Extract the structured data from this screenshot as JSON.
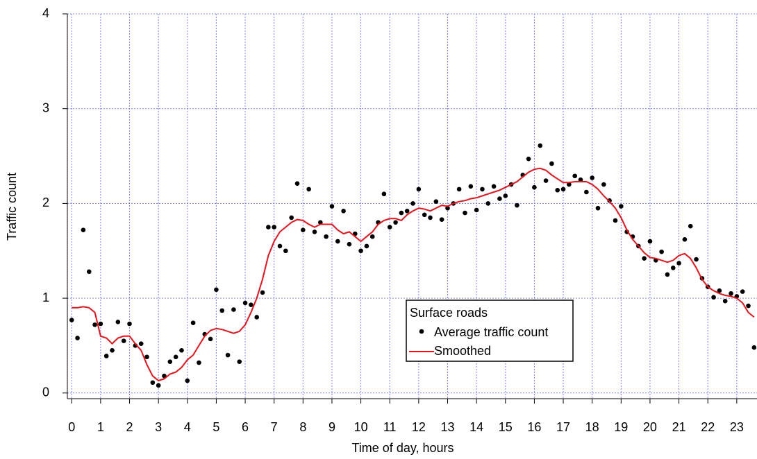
{
  "chart_data": {
    "type": "scatter",
    "xlabel": "Time of day, hours",
    "ylabel": "Traffic count",
    "x": [
      0,
      0.2,
      0.4,
      0.6,
      0.8,
      1,
      1.2,
      1.4,
      1.6,
      1.8,
      2,
      2.2,
      2.4,
      2.6,
      2.8,
      3,
      3.2,
      3.4,
      3.6,
      3.8,
      4,
      4.2,
      4.4,
      4.6,
      4.8,
      5,
      5.2,
      5.4,
      5.6,
      5.8,
      6,
      6.2,
      6.4,
      6.6,
      6.8,
      7,
      7.2,
      7.4,
      7.6,
      7.8,
      8,
      8.2,
      8.4,
      8.6,
      8.8,
      9,
      9.2,
      9.4,
      9.6,
      9.8,
      10,
      10.2,
      10.4,
      10.6,
      10.8,
      11,
      11.2,
      11.4,
      11.6,
      11.8,
      12,
      12.2,
      12.4,
      12.6,
      12.8,
      13,
      13.2,
      13.4,
      13.6,
      13.8,
      14,
      14.2,
      14.4,
      14.6,
      14.8,
      15,
      15.2,
      15.4,
      15.6,
      15.8,
      16,
      16.2,
      16.4,
      16.6,
      16.8,
      17,
      17.2,
      17.4,
      17.6,
      17.8,
      18,
      18.2,
      18.4,
      18.6,
      18.8,
      19,
      19.2,
      19.4,
      19.6,
      19.8,
      20,
      20.2,
      20.4,
      20.6,
      20.8,
      21,
      21.2,
      21.4,
      21.6,
      21.8,
      22,
      22.2,
      22.4,
      22.6,
      22.8,
      23,
      23.2,
      23.4,
      23.6
    ],
    "series": [
      {
        "name": "Average traffic count",
        "style": "markers",
        "color": "#000000",
        "values": [
          0.77,
          0.58,
          1.72,
          1.28,
          0.72,
          0.73,
          0.39,
          0.45,
          0.75,
          0.55,
          0.73,
          0.5,
          0.52,
          0.38,
          0.11,
          0.08,
          0.18,
          0.33,
          0.38,
          0.45,
          0.13,
          0.74,
          0.32,
          0.62,
          0.57,
          1.09,
          0.87,
          0.4,
          0.88,
          0.33,
          0.95,
          0.93,
          0.8,
          1.06,
          1.75,
          1.75,
          1.55,
          1.5,
          1.85,
          2.21,
          1.72,
          2.15,
          1.7,
          1.8,
          1.65,
          1.97,
          1.6,
          1.92,
          1.57,
          1.68,
          1.5,
          1.55,
          1.65,
          1.8,
          2.1,
          1.75,
          1.8,
          1.9,
          1.92,
          2.0,
          2.15,
          1.88,
          1.85,
          2.02,
          1.83,
          1.95,
          2.0,
          2.15,
          1.9,
          2.18,
          1.93,
          2.15,
          2.0,
          2.18,
          2.05,
          2.08,
          2.2,
          1.98,
          2.3,
          2.47,
          2.17,
          2.61,
          2.24,
          2.42,
          2.14,
          2.15,
          2.2,
          2.29,
          2.25,
          2.12,
          2.27,
          1.95,
          2.2,
          2.03,
          1.82,
          1.97,
          1.7,
          1.65,
          1.55,
          1.42,
          1.6,
          1.4,
          1.49,
          1.25,
          1.32,
          1.37,
          1.62,
          1.76,
          1.41,
          1.21,
          1.12,
          1.01,
          1.08,
          0.97,
          1.05,
          1.02,
          1.07,
          0.92,
          0.48
        ]
      },
      {
        "name": "Smoothed",
        "style": "line",
        "color": "#e8141c",
        "values": [
          0.9,
          0.9,
          0.91,
          0.9,
          0.85,
          0.6,
          0.58,
          0.52,
          0.58,
          0.6,
          0.6,
          0.52,
          0.45,
          0.3,
          0.18,
          0.13,
          0.15,
          0.2,
          0.22,
          0.27,
          0.35,
          0.4,
          0.5,
          0.6,
          0.66,
          0.68,
          0.67,
          0.65,
          0.63,
          0.65,
          0.72,
          0.85,
          1.0,
          1.2,
          1.45,
          1.6,
          1.7,
          1.75,
          1.8,
          1.83,
          1.82,
          1.78,
          1.75,
          1.78,
          1.78,
          1.78,
          1.72,
          1.68,
          1.7,
          1.65,
          1.6,
          1.65,
          1.7,
          1.78,
          1.82,
          1.84,
          1.84,
          1.82,
          1.88,
          1.92,
          1.95,
          1.94,
          1.92,
          1.95,
          1.98,
          1.97,
          2.0,
          2.02,
          2.03,
          2.05,
          2.06,
          2.08,
          2.1,
          2.12,
          2.14,
          2.17,
          2.2,
          2.23,
          2.28,
          2.33,
          2.36,
          2.37,
          2.35,
          2.3,
          2.26,
          2.22,
          2.22,
          2.23,
          2.23,
          2.23,
          2.2,
          2.15,
          2.08,
          2.02,
          1.95,
          1.85,
          1.72,
          1.62,
          1.55,
          1.48,
          1.43,
          1.42,
          1.4,
          1.38,
          1.4,
          1.45,
          1.47,
          1.42,
          1.32,
          1.2,
          1.12,
          1.08,
          1.05,
          1.03,
          1.02,
          1.0,
          0.95,
          0.85,
          0.8
        ]
      }
    ],
    "xlim": [
      -0.15,
      23.7
    ],
    "ylim": [
      -0.06,
      4
    ],
    "xticks": [
      0,
      1,
      2,
      3,
      4,
      5,
      6,
      7,
      8,
      9,
      10,
      11,
      12,
      13,
      14,
      15,
      16,
      17,
      18,
      19,
      20,
      21,
      22,
      23
    ],
    "yticks": [
      0,
      1,
      2,
      3,
      4
    ],
    "grid": true,
    "grid_color": "#8080ff",
    "legend": {
      "title": "Surface roads",
      "position": "lower-center"
    }
  }
}
